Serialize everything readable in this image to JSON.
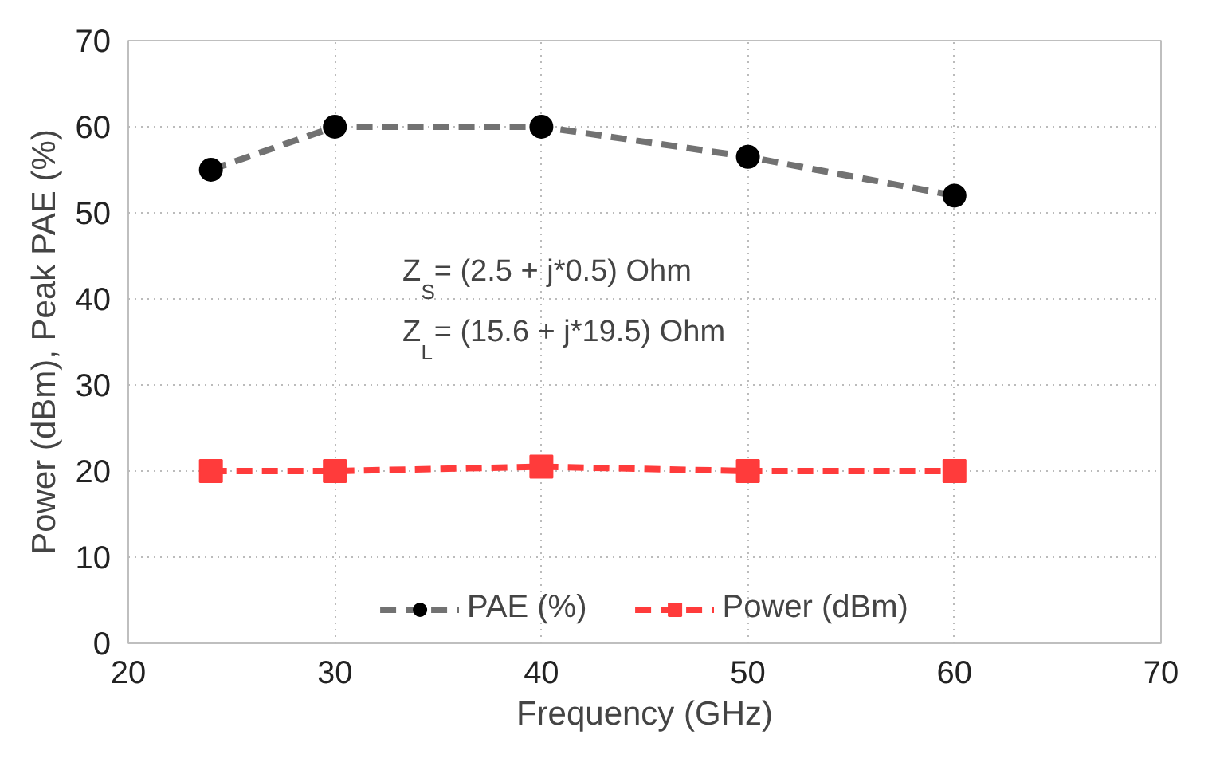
{
  "chart_data": {
    "type": "line",
    "xlabel": "Frequency (GHz)",
    "ylabel": "Power (dBm), Peak PAE (%)",
    "x": [
      24,
      30,
      40,
      50,
      60
    ],
    "series": [
      {
        "name": "PAE (%)",
        "color": "#000000",
        "values": [
          55,
          60,
          60,
          56.5,
          52
        ],
        "marker": "circle"
      },
      {
        "name": "Power (dBm)",
        "color": "#ff3b3b",
        "values": [
          20,
          20,
          20.5,
          20,
          20
        ],
        "marker": "square"
      }
    ],
    "xlim": [
      20,
      70
    ],
    "xticks": [
      20,
      30,
      40,
      50,
      60,
      70
    ],
    "ylim": [
      0,
      70
    ],
    "yticks": [
      0,
      10,
      20,
      30,
      40,
      50,
      60,
      70
    ],
    "grid": true,
    "legend": "bottom",
    "line_style": "dashed",
    "annotations": [
      "Z$_{S}$= (2.5 + j*0.5) Ohm",
      "Z$_{L}$= (15.6 + j*19.5) Ohm"
    ]
  }
}
